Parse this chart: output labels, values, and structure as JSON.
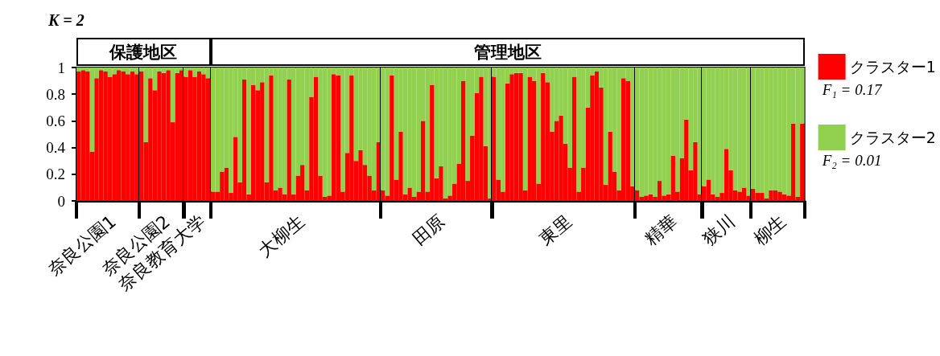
{
  "chart_data": [
    {
      "type": "bar",
      "stacked": true,
      "title": "K = 2",
      "xlabel": "奈良公園1",
      "annotations": [
        "保護地区"
      ],
      "tick_labels": "y",
      "ylim": [
        0,
        1
      ],
      "yticks": [
        0,
        0.2,
        0.4,
        0.6,
        0.8,
        1
      ],
      "grid": false,
      "legend": false,
      "categories": [
        null,
        null,
        null,
        null,
        null,
        null,
        null,
        null,
        null,
        null,
        null,
        null,
        null,
        null
      ],
      "series": [
        {
          "color": "#ff0000",
          "values": [
            0.97,
            0.98,
            0.97,
            0.37,
            0.92,
            0.98,
            0.97,
            0.93,
            0.95,
            0.98,
            0.97,
            0.95,
            0.97,
            0.95
          ]
        },
        {
          "color": "#92d050",
          "values": [
            0.03,
            0.02,
            0.03,
            0.63,
            0.08,
            0.02,
            0.03,
            0.07,
            0.05,
            0.02,
            0.03,
            0.05,
            0.03,
            0.05
          ]
        }
      ]
    },
    {
      "type": "bar",
      "stacked": true,
      "xlabel": "奈良公園2",
      "tick_labels": false,
      "ylim": [
        0,
        1
      ],
      "grid": false,
      "legend": false,
      "categories": [
        null,
        null,
        null,
        null,
        null,
        null,
        null,
        null,
        null,
        null
      ],
      "series": [
        {
          "color": "#ff0000",
          "values": [
            0.97,
            0.44,
            0.92,
            0.83,
            0.97,
            0.96,
            0.98,
            0.59,
            0.96,
            0.98
          ]
        },
        {
          "color": "#92d050",
          "values": [
            0.03,
            0.56,
            0.08,
            0.17,
            0.03,
            0.04,
            0.02,
            0.41,
            0.04,
            0.02
          ]
        }
      ]
    },
    {
      "type": "bar",
      "stacked": true,
      "xlabel": "奈良教育大学",
      "tick_labels": false,
      "ylim": [
        0,
        1
      ],
      "grid": false,
      "legend": false,
      "categories": [
        null,
        null,
        null,
        null,
        null,
        null
      ],
      "series": [
        {
          "color": "#ff0000",
          "values": [
            0.93,
            0.98,
            0.93,
            0.97,
            0.95,
            0.92
          ]
        },
        {
          "color": "#92d050",
          "values": [
            0.07,
            0.02,
            0.07,
            0.03,
            0.05,
            0.08
          ]
        }
      ]
    },
    {
      "type": "bar",
      "stacked": true,
      "xlabel": "大柳生",
      "annotations": [
        "管理地区"
      ],
      "tick_labels": false,
      "ylim": [
        0,
        1
      ],
      "grid": false,
      "legend": false,
      "categories": [
        null,
        null,
        null,
        null,
        null,
        null,
        null,
        null,
        null,
        null,
        null,
        null,
        null,
        null,
        null,
        null,
        null,
        null,
        null,
        null,
        null,
        null,
        null,
        null,
        null,
        null,
        null,
        null,
        null,
        null,
        null,
        null,
        null,
        null,
        null,
        null,
        null,
        null
      ],
      "series": [
        {
          "color": "#ff0000",
          "values": [
            0.07,
            0.07,
            0.22,
            0.25,
            0.06,
            0.48,
            0.14,
            0.91,
            0.05,
            0.87,
            0.83,
            0.89,
            0.14,
            0.94,
            0.08,
            0.1,
            0.05,
            0.91,
            0.05,
            0.19,
            0.27,
            0.08,
            0.78,
            0.93,
            0.19,
            0.03,
            0.04,
            0.95,
            0.94,
            0.07,
            0.36,
            0.94,
            0.3,
            0.38,
            0.27,
            0.19,
            0.08,
            0.44
          ]
        },
        {
          "color": "#92d050",
          "values": [
            0.93,
            0.93,
            0.78,
            0.75,
            0.94,
            0.52,
            0.86,
            0.09,
            0.95,
            0.13,
            0.17,
            0.11,
            0.86,
            0.06,
            0.92,
            0.9,
            0.95,
            0.09,
            0.95,
            0.81,
            0.73,
            0.92,
            0.22,
            0.07,
            0.81,
            0.97,
            0.96,
            0.05,
            0.06,
            0.93,
            0.64,
            0.06,
            0.7,
            0.62,
            0.73,
            0.81,
            0.92,
            0.56
          ]
        }
      ]
    },
    {
      "type": "bar",
      "stacked": true,
      "xlabel": "田原",
      "tick_labels": false,
      "ylim": [
        0,
        1
      ],
      "grid": false,
      "legend": false,
      "categories": [
        null,
        null,
        null,
        null,
        null,
        null,
        null,
        null,
        null,
        null,
        null,
        null,
        null,
        null,
        null,
        null,
        null,
        null,
        null,
        null,
        null,
        null,
        null,
        null,
        null
      ],
      "series": [
        {
          "color": "#ff0000",
          "values": [
            0.08,
            0.04,
            0.94,
            0.16,
            0.52,
            0.05,
            0.1,
            0.03,
            0.07,
            0.6,
            0.07,
            0.87,
            0.17,
            0.26,
            0.02,
            0.04,
            0.13,
            0.28,
            0.9,
            0.15,
            0.49,
            0.81,
            0.93,
            0.41,
            0.02
          ]
        },
        {
          "color": "#92d050",
          "values": [
            0.92,
            0.96,
            0.06,
            0.84,
            0.48,
            0.95,
            0.9,
            0.97,
            0.93,
            0.4,
            0.93,
            0.13,
            0.83,
            0.74,
            0.98,
            0.96,
            0.87,
            0.72,
            0.1,
            0.85,
            0.51,
            0.19,
            0.07,
            0.59,
            0.98
          ]
        }
      ]
    },
    {
      "type": "bar",
      "stacked": true,
      "xlabel": "東里",
      "tick_labels": false,
      "ylim": [
        0,
        1
      ],
      "grid": false,
      "legend": false,
      "categories": [
        null,
        null,
        null,
        null,
        null,
        null,
        null,
        null,
        null,
        null,
        null,
        null,
        null,
        null,
        null,
        null,
        null,
        null,
        null,
        null,
        null,
        null,
        null,
        null,
        null,
        null,
        null,
        null,
        null,
        null,
        null,
        null
      ],
      "series": [
        {
          "color": "#ff0000",
          "values": [
            0.93,
            0.16,
            0.07,
            0.88,
            0.95,
            0.96,
            0.96,
            0.08,
            0.93,
            0.9,
            0.13,
            0.96,
            0.89,
            0.52,
            0.6,
            0.64,
            0.43,
            0.25,
            0.93,
            0.07,
            0.25,
            0.7,
            0.94,
            0.97,
            0.85,
            0.12,
            0.52,
            0.22,
            0.08,
            0.92,
            0.9,
            0.11
          ]
        },
        {
          "color": "#92d050",
          "values": [
            0.07,
            0.84,
            0.93,
            0.12,
            0.05,
            0.04,
            0.04,
            0.92,
            0.07,
            0.1,
            0.87,
            0.04,
            0.11,
            0.48,
            0.4,
            0.36,
            0.57,
            0.75,
            0.07,
            0.93,
            0.75,
            0.3,
            0.06,
            0.03,
            0.15,
            0.88,
            0.48,
            0.78,
            0.92,
            0.08,
            0.1,
            0.89
          ]
        }
      ]
    },
    {
      "type": "bar",
      "stacked": true,
      "xlabel": "精華",
      "tick_labels": false,
      "ylim": [
        0,
        1
      ],
      "grid": false,
      "legend": false,
      "categories": [
        null,
        null,
        null,
        null,
        null,
        null,
        null,
        null,
        null,
        null,
        null,
        null,
        null,
        null,
        null
      ],
      "series": [
        {
          "color": "#ff0000",
          "values": [
            0.08,
            0.03,
            0.04,
            0.05,
            0.03,
            0.15,
            0.04,
            0.05,
            0.34,
            0.07,
            0.32,
            0.61,
            0.23,
            0.44,
            0.05
          ]
        },
        {
          "color": "#92d050",
          "values": [
            0.92,
            0.97,
            0.96,
            0.95,
            0.97,
            0.85,
            0.96,
            0.95,
            0.66,
            0.93,
            0.68,
            0.39,
            0.77,
            0.56,
            0.95
          ]
        }
      ]
    },
    {
      "type": "bar",
      "stacked": true,
      "xlabel": "狭川",
      "tick_labels": false,
      "ylim": [
        0,
        1
      ],
      "grid": false,
      "legend": false,
      "categories": [
        null,
        null,
        null,
        null,
        null,
        null,
        null,
        null,
        null,
        null,
        null
      ],
      "series": [
        {
          "color": "#ff0000",
          "values": [
            0.11,
            0.16,
            0.05,
            0.03,
            0.06,
            0.39,
            0.23,
            0.08,
            0.07,
            0.1,
            0.04
          ]
        },
        {
          "color": "#92d050",
          "values": [
            0.89,
            0.84,
            0.95,
            0.97,
            0.94,
            0.61,
            0.77,
            0.92,
            0.93,
            0.9,
            0.96
          ]
        }
      ]
    },
    {
      "type": "bar",
      "stacked": true,
      "xlabel": "柳生",
      "annotations": [
        "F₁ = 0.17",
        "F₂ = 0.01"
      ],
      "tick_labels": false,
      "ylim": [
        0,
        1
      ],
      "grid": false,
      "legend": "right",
      "categories": [
        null,
        null,
        null,
        null,
        null,
        null,
        null,
        null,
        null,
        null,
        null,
        null
      ],
      "series": [
        {
          "name": "クラスター1",
          "color": "#ff0000",
          "values": [
            0.09,
            0.06,
            0.06,
            0.02,
            0.08,
            0.08,
            0.07,
            0.05,
            0.04,
            0.58,
            0.03,
            0.58
          ]
        },
        {
          "name": "クラスター2",
          "color": "#92d050",
          "values": [
            0.91,
            0.94,
            0.94,
            0.98,
            0.92,
            0.92,
            0.93,
            0.95,
            0.96,
            0.42,
            0.97,
            0.42
          ]
        }
      ]
    }
  ]
}
